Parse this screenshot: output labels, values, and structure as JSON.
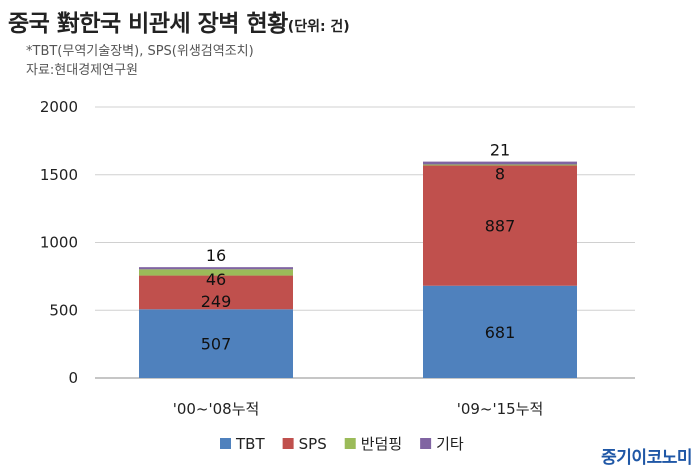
{
  "header": {
    "title": "중국 對한국 비관세 장벽 현황",
    "unit": "(단위: 건)",
    "note": "*TBT(무역기술장벽), SPS(위생검역조치)",
    "source": "자료:현대경제연구원"
  },
  "brand": "중기이코노미",
  "chart_data": {
    "type": "bar",
    "stacked": true,
    "categories": [
      "'00~'08누적",
      "'09~'15누적"
    ],
    "series": [
      {
        "name": "TBT",
        "color": "#4f81bd",
        "values": [
          507,
          681
        ]
      },
      {
        "name": "SPS",
        "color": "#c0504d",
        "values": [
          249,
          887
        ]
      },
      {
        "name": "반덤핑",
        "color": "#9bbb59",
        "values": [
          46,
          8
        ]
      },
      {
        "name": "기타",
        "color": "#8064a2",
        "values": [
          16,
          21
        ]
      }
    ],
    "ylim": [
      0,
      2000
    ],
    "yticks": [
      0,
      500,
      1000,
      1500,
      2000
    ],
    "grid": true,
    "legend": "bottom"
  }
}
